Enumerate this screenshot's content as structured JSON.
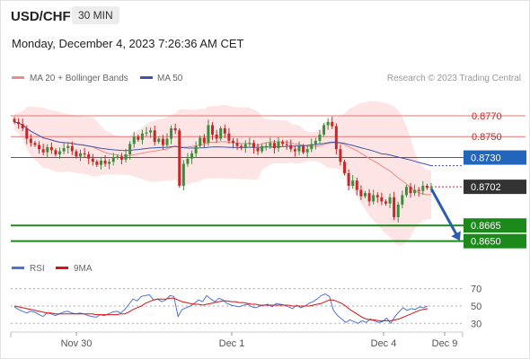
{
  "header": {
    "pair": "USD/CHF",
    "timeframe": "30 MIN",
    "timestamp": "Monday, December 4, 2023 7:26:36 AM CET"
  },
  "legend": {
    "bb": "MA 20 + Bollinger Bands",
    "ma50": "MA 50",
    "credit": "Research © 2023 Trading Central",
    "rsi": "RSI",
    "rsi_ma": "9MA"
  },
  "colors": {
    "up_candle": "#3a8f3a",
    "down_candle": "#c62828",
    "bollinger_fill": "#fde0e0",
    "ma20": "#ee8a8a",
    "ma50": "#3f55a8",
    "resistance": "#e57373",
    "pivot": "#2266bb",
    "support": "#1b8a1b",
    "current": "#333333",
    "rsi": "#4a72d8",
    "rsi_ma": "#dd1111"
  },
  "chart_data": [
    {
      "type": "candlestick",
      "x_ticks": [
        "Nov 30",
        "Dec 1",
        "Dec 4",
        "Dec 9"
      ],
      "ylim": [
        0.8642,
        0.8788
      ],
      "levels": [
        {
          "label": "0.8770",
          "value": 0.877,
          "kind": "resistance"
        },
        {
          "label": "0.8750",
          "value": 0.875,
          "kind": "resistance"
        },
        {
          "label": "0.8730",
          "value": 0.873,
          "kind": "pivot"
        },
        {
          "label": "0.8702",
          "value": 0.8702,
          "kind": "current"
        },
        {
          "label": "0.8665",
          "value": 0.8665,
          "kind": "support"
        },
        {
          "label": "0.8650",
          "value": 0.865,
          "kind": "support"
        }
      ],
      "close": [
        0.8764,
        0.8762,
        0.8758,
        0.8748,
        0.8744,
        0.8742,
        0.8738,
        0.8735,
        0.874,
        0.8737,
        0.8733,
        0.8736,
        0.8739,
        0.8741,
        0.8736,
        0.8731,
        0.8734,
        0.8733,
        0.8729,
        0.8726,
        0.8723,
        0.8727,
        0.8724,
        0.8726,
        0.873,
        0.8731,
        0.8728,
        0.8733,
        0.8743,
        0.875,
        0.8747,
        0.8753,
        0.8754,
        0.8756,
        0.8745,
        0.8748,
        0.8742,
        0.8748,
        0.8758,
        0.8756,
        0.8703,
        0.8724,
        0.8729,
        0.8734,
        0.8741,
        0.8749,
        0.8744,
        0.8761,
        0.8752,
        0.8748,
        0.8758,
        0.8753,
        0.8746,
        0.8744,
        0.8741,
        0.8739,
        0.8743,
        0.8744,
        0.8739,
        0.8736,
        0.8741,
        0.8741,
        0.8744,
        0.8739,
        0.8745,
        0.8743,
        0.8742,
        0.8738,
        0.8736,
        0.8741,
        0.8735,
        0.8738,
        0.8743,
        0.8746,
        0.8752,
        0.8761,
        0.8764,
        0.876,
        0.8738,
        0.8726,
        0.8715,
        0.8703,
        0.8708,
        0.8699,
        0.8693,
        0.8696,
        0.8688,
        0.8694,
        0.8692,
        0.8688,
        0.8686,
        0.8692,
        0.8673,
        0.8685,
        0.8694,
        0.8702,
        0.8696,
        0.8699,
        0.8698,
        0.8703,
        0.8701,
        0.8702
      ]
    },
    {
      "type": "line",
      "title": "RSI",
      "y_ticks": [
        70,
        50,
        30
      ],
      "ylim": [
        22,
        80
      ],
      "series": [
        {
          "name": "RSI",
          "values": [
            49,
            46,
            44,
            42,
            44,
            43,
            40,
            38,
            42,
            41,
            39,
            41,
            43,
            44,
            42,
            41,
            42,
            41,
            39,
            38,
            37,
            40,
            39,
            41,
            43,
            44,
            42,
            46,
            52,
            58,
            56,
            61,
            62,
            63,
            57,
            58,
            55,
            57,
            62,
            61,
            38,
            46,
            48,
            50,
            53,
            57,
            55,
            62,
            58,
            55,
            59,
            57,
            53,
            51,
            50,
            49,
            51,
            52,
            49,
            48,
            50,
            51,
            52,
            49,
            53,
            52,
            51,
            49,
            47,
            51,
            48,
            50,
            53,
            55,
            58,
            62,
            64,
            61,
            45,
            39,
            35,
            31,
            34,
            32,
            30,
            33,
            31,
            35,
            33,
            31,
            32,
            36,
            30,
            38,
            43,
            48,
            45,
            47,
            46,
            49,
            48,
            50
          ]
        },
        {
          "name": "9MA",
          "values": [
            50,
            49,
            48,
            47,
            46,
            45,
            44,
            43,
            42,
            42,
            41,
            41,
            41,
            41,
            41,
            41,
            41,
            41,
            41,
            41,
            40,
            40,
            40,
            40,
            40,
            40,
            41,
            41,
            43,
            46,
            48,
            50,
            53,
            55,
            57,
            58,
            58,
            58,
            59,
            59,
            57,
            55,
            54,
            53,
            52,
            52,
            51,
            52,
            53,
            54,
            55,
            56,
            56,
            55,
            55,
            54,
            54,
            53,
            52,
            52,
            51,
            51,
            51,
            51,
            51,
            51,
            51,
            51,
            50,
            50,
            50,
            50,
            50,
            51,
            52,
            53,
            55,
            57,
            57,
            55,
            53,
            50,
            46,
            43,
            40,
            37,
            35,
            34,
            34,
            33,
            33,
            33,
            33,
            34,
            35,
            37,
            39,
            41,
            43,
            45,
            46,
            47
          ]
        }
      ]
    }
  ]
}
